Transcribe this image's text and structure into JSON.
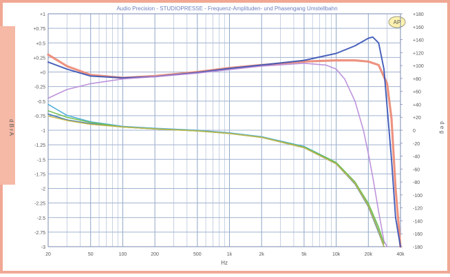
{
  "chart_data": {
    "type": "line",
    "title": "Audio Precision - STUDIOPRESSE - Frequenz-Amplituden- und Phasengang Umstellbahn",
    "logo_text": "AP",
    "xlabel": "Hz",
    "ylabel_left": "d B r A",
    "ylabel_right": "d e g",
    "xscale": "log",
    "xlim": [
      20,
      40000
    ],
    "x_tick_labels": [
      {
        "value": 20,
        "label": "20"
      },
      {
        "value": 50,
        "label": "50"
      },
      {
        "value": 100,
        "label": "100"
      },
      {
        "value": 200,
        "label": "200"
      },
      {
        "value": 500,
        "label": "500"
      },
      {
        "value": 1000,
        "label": "1k"
      },
      {
        "value": 2000,
        "label": "2k"
      },
      {
        "value": 5000,
        "label": "5k"
      },
      {
        "value": 10000,
        "label": "10k"
      },
      {
        "value": 20000,
        "label": "20k"
      },
      {
        "value": 40000,
        "label": "40k"
      }
    ],
    "left_tick_labels": [
      "+1",
      "+0.75",
      "+0.5",
      "+0.25",
      "+0",
      "-0.25",
      "-0.5",
      "-0.75",
      "-1",
      "-1.25",
      "-1.5",
      "-1.75",
      "-2",
      "-2.25",
      "-2.5",
      "-2.75",
      "-3"
    ],
    "right_tick_labels": [
      "+180",
      "+160",
      "+140",
      "+120",
      "+100",
      "+80",
      "+60",
      "+40",
      "+20",
      "0",
      "-20",
      "-40",
      "-60",
      "-80",
      "-100",
      "-120",
      "-140",
      "-160",
      "-180"
    ],
    "right_tick_values": [
      180,
      160,
      140,
      120,
      100,
      80,
      60,
      40,
      20,
      0,
      -20,
      -40,
      -60,
      -80,
      -100,
      -120,
      -140,
      -160,
      -180
    ],
    "grid": true,
    "series": [
      {
        "color": "#ec8a76",
        "x": [
          20,
          30,
          50,
          100,
          200,
          500,
          1000,
          2000,
          5000,
          10000,
          15000,
          20000,
          25000,
          30000,
          33000,
          36000,
          40000
        ],
        "y": [
          0.3,
          0.1,
          -0.05,
          -0.1,
          -0.07,
          0.0,
          0.07,
          0.12,
          0.18,
          0.2,
          0.2,
          0.18,
          0.12,
          -0.2,
          -0.8,
          -2.0,
          -3.2
        ]
      },
      {
        "color": "#3a55b5",
        "x": [
          20,
          30,
          50,
          100,
          200,
          500,
          1000,
          2000,
          5000,
          10000,
          15000,
          20000,
          22000,
          25000,
          28000,
          30000,
          33000,
          36000,
          40000
        ],
        "y": [
          0.17,
          0.05,
          -0.07,
          -0.1,
          -0.08,
          -0.01,
          0.06,
          0.12,
          0.2,
          0.32,
          0.45,
          0.58,
          0.6,
          0.5,
          0.05,
          -0.6,
          -1.5,
          -2.5,
          -3.3
        ]
      },
      {
        "color": "#b98ad8",
        "x": [
          20,
          30,
          50,
          100,
          200,
          500,
          1000,
          2000,
          5000,
          8000,
          10000,
          12000,
          15000,
          18000,
          20000,
          22000,
          25000,
          28000,
          30000
        ],
        "y": [
          -0.45,
          -0.3,
          -0.2,
          -0.12,
          -0.08,
          -0.02,
          0.04,
          0.1,
          0.15,
          0.12,
          0.05,
          -0.12,
          -0.5,
          -1.0,
          -1.4,
          -1.8,
          -2.4,
          -2.9,
          -3.2
        ]
      },
      {
        "color": "#42a8d8",
        "x": [
          20,
          30,
          50,
          100,
          200,
          500,
          1000,
          2000,
          5000,
          10000,
          15000,
          20000,
          25000,
          28000
        ],
        "y": [
          40,
          23,
          13,
          6,
          3,
          0,
          -4,
          -10,
          -25,
          -50,
          -80,
          -115,
          -155,
          -180
        ]
      },
      {
        "color": "#2e6fb0",
        "x": [
          20,
          30,
          50,
          100,
          200,
          500,
          1000,
          2000,
          5000,
          10000,
          15000,
          20000,
          25000,
          28000
        ],
        "y": [
          25,
          16,
          10,
          5,
          2,
          -1,
          -5,
          -11,
          -27,
          -52,
          -83,
          -118,
          -158,
          -180
        ]
      },
      {
        "color": "#6cbf4a",
        "x": [
          20,
          30,
          50,
          100,
          200,
          500,
          1000,
          2000,
          5000,
          10000,
          15000,
          20000,
          25000,
          28000
        ],
        "y": [
          30,
          20,
          12,
          5,
          2,
          -1,
          -5,
          -11,
          -26,
          -50,
          -80,
          -113,
          -150,
          -175
        ]
      },
      {
        "color": "#c8b84a",
        "x": [
          20,
          30,
          50,
          100,
          200,
          500,
          1000,
          2000,
          5000,
          10000,
          15000,
          20000,
          25000,
          28000
        ],
        "y": [
          22,
          15,
          9,
          5,
          2,
          -1,
          -5,
          -11,
          -27,
          -52,
          -82,
          -117,
          -156,
          -180
        ]
      }
    ],
    "series_axis": [
      "left",
      "left",
      "left",
      "right",
      "right",
      "right",
      "right"
    ]
  }
}
